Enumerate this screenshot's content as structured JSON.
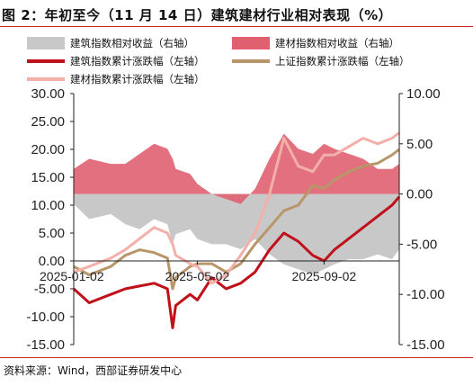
{
  "header": {
    "title": "图 2：年初至今（11 月 14 日）建筑建材行业相对表现（%）"
  },
  "footer": {
    "source": "资料来源：Wind，西部证券研发中心"
  },
  "chart_data": {
    "type": "line",
    "x": [
      "2025-01-02",
      "2025-01-17",
      "2025-02-07",
      "2025-02-21",
      "2025-03-07",
      "2025-03-21",
      "2025-04-03",
      "2025-04-08",
      "2025-04-11",
      "2025-04-25",
      "2025-05-02",
      "2025-05-16",
      "2025-05-30",
      "2025-06-13",
      "2025-06-27",
      "2025-07-11",
      "2025-07-25",
      "2025-08-08",
      "2025-08-22",
      "2025-09-02",
      "2025-09-12",
      "2025-09-26",
      "2025-10-10",
      "2025-10-24",
      "2025-11-07",
      "2025-11-14"
    ],
    "x_ticks": [
      "2025-01-02",
      "2025-05-02",
      "2025-09-02"
    ],
    "series": [
      {
        "name": "建筑指数相对收益（右轴）",
        "axis": "right",
        "kind": "area",
        "color": "#c8c8c8",
        "values": [
          -1.0,
          -2.5,
          -2.0,
          -3.0,
          -3.5,
          -2.5,
          -3.0,
          -5.0,
          -4.0,
          -3.5,
          -4.5,
          -5.0,
          -5.0,
          -5.5,
          -4.5,
          -6.0,
          -7.0,
          -7.5,
          -8.0,
          -7.5,
          -7.0,
          -6.5,
          -6.5,
          -6.0,
          -6.5,
          -5.5
        ]
      },
      {
        "name": "建材指数相对收益（右轴）",
        "axis": "right",
        "kind": "area",
        "color": "#e06070",
        "values": [
          2.5,
          3.5,
          3.0,
          3.0,
          4.0,
          5.0,
          4.5,
          3.5,
          2.5,
          2.0,
          1.0,
          0.0,
          -0.5,
          -1.0,
          0.5,
          3.5,
          6.0,
          4.5,
          4.0,
          5.0,
          4.5,
          4.0,
          3.5,
          2.5,
          2.5,
          3.0
        ]
      },
      {
        "name": "建筑指数累计涨跌幅（左轴）",
        "axis": "left",
        "kind": "line",
        "color": "#c0101a",
        "values": [
          -5.0,
          -7.5,
          -6.0,
          -5.0,
          -4.5,
          -4.0,
          -5.0,
          -12.0,
          -8.0,
          -6.0,
          -7.0,
          -3.0,
          -5.0,
          -4.0,
          -2.0,
          2.0,
          5.0,
          3.5,
          1.0,
          0.0,
          2.0,
          4.0,
          6.0,
          8.0,
          10.0,
          11.5
        ]
      },
      {
        "name": "上证指数累计涨跌幅（左轴）",
        "axis": "left",
        "kind": "line",
        "color": "#b8966a",
        "values": [
          -1.0,
          -2.5,
          -1.0,
          1.0,
          2.0,
          1.5,
          0.5,
          -5.0,
          -3.0,
          -1.0,
          -0.5,
          -0.5,
          -2.0,
          -0.5,
          3.0,
          6.0,
          9.0,
          10.0,
          13.5,
          13.0,
          14.5,
          16.0,
          17.0,
          17.5,
          19.0,
          20.0
        ]
      },
      {
        "name": "建材指数累计涨跌幅（左轴）",
        "axis": "left",
        "kind": "line",
        "color": "#f2b0a8",
        "values": [
          -2.0,
          -1.0,
          0.5,
          2.0,
          4.0,
          6.0,
          5.0,
          3.0,
          1.0,
          -0.5,
          -1.0,
          -4.0,
          -2.5,
          1.0,
          5.0,
          12.0,
          22.0,
          17.0,
          16.0,
          19.0,
          19.0,
          20.5,
          22.0,
          21.0,
          22.0,
          23.0
        ]
      }
    ],
    "y_left": {
      "ticks": [
        "-15.00",
        "-10.00",
        "-5.00",
        "0.00",
        "5.00",
        "10.00",
        "15.00",
        "20.00",
        "25.00",
        "30.00"
      ],
      "ylim": [
        -15,
        30
      ]
    },
    "y_right": {
      "ticks": [
        "-15.00",
        "-10.00",
        "-5.00",
        "0.00",
        "5.00",
        "10.00"
      ],
      "ylim": [
        -15,
        10
      ]
    },
    "legend_position": "top",
    "grid": false
  }
}
